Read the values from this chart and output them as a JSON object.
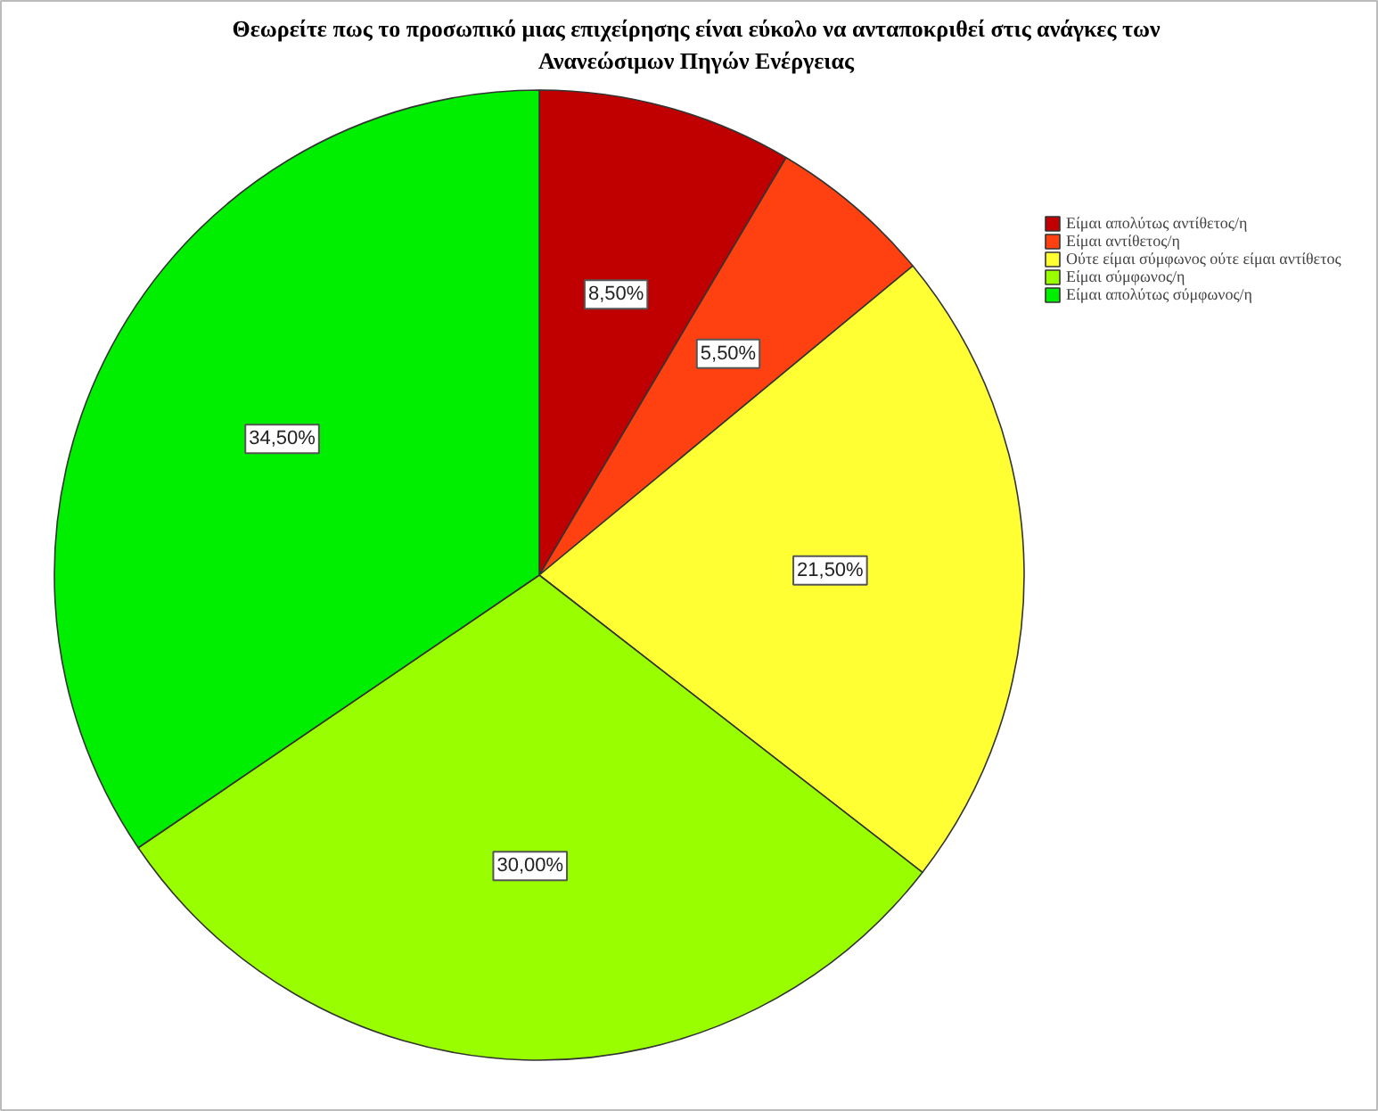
{
  "chart_data": {
    "type": "pie",
    "title": "Θεωρείτε πως το προσωπικό μιας επιχείρησης είναι εύκολο να ανταποκριθεί στις ανάγκες των Ανανεώσιμων Πηγών Ενέργειας",
    "categories": [
      "Είμαι απολύτως αντίθετος/η",
      "Είμαι αντίθετος/η",
      "Ούτε είμαι σύμφωνος ούτε είμαι αντίθετος",
      "Είμαι σύμφωνος/η",
      "Είμαι απολύτως σύμφωνος/η"
    ],
    "values": [
      8.5,
      5.5,
      21.5,
      30.0,
      34.5
    ],
    "value_labels": [
      "8,50%",
      "5,50%",
      "21,50%",
      "30,00%",
      "34,50%"
    ],
    "colors": [
      "#c00000",
      "#ff4010",
      "#ffff33",
      "#99ff00",
      "#00ee00"
    ],
    "legend": "top right"
  }
}
